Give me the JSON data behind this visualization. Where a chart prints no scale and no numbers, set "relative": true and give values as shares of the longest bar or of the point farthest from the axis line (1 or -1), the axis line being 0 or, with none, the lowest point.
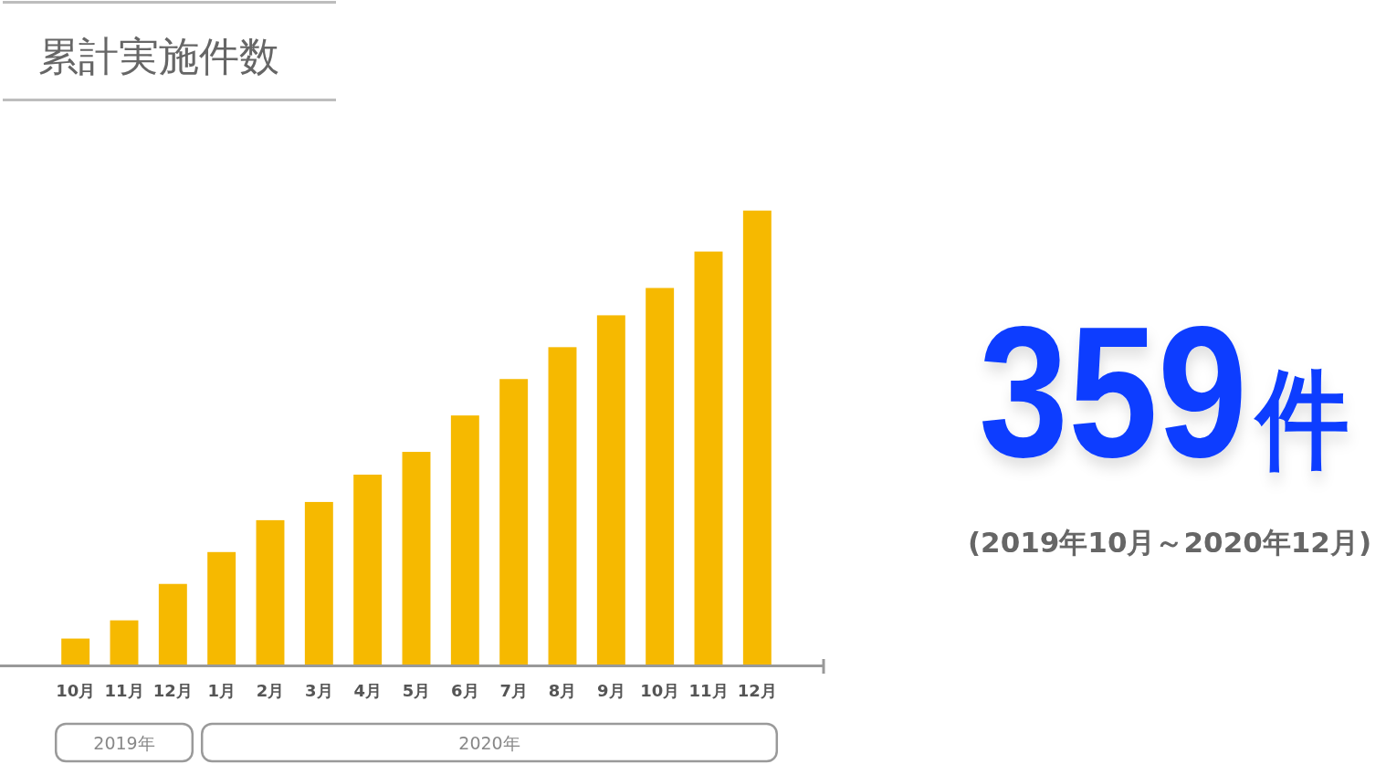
{
  "chart_data": [
    {
      "type": "bar",
      "title": "累計実施件数",
      "categories": [
        "10月",
        "11月",
        "12月",
        "1月",
        "2月",
        "3月",
        "4月",
        "5月",
        "6月",
        "7月",
        "8月",
        "9月",
        "10月",
        "11月",
        "12月"
      ],
      "values": [
        0.06,
        0.1,
        0.18,
        0.25,
        0.32,
        0.36,
        0.42,
        0.47,
        0.55,
        0.63,
        0.7,
        0.77,
        0.83,
        0.91,
        1
      ],
      "color": "#f6b900",
      "relative": true,
      "annotations": [
        "2019年",
        "2020年"
      ]
    },
    {
      "type": "other",
      "title": "359件",
      "subtitle": "(2019年10月～2020年12月)"
    }
  ]
}
